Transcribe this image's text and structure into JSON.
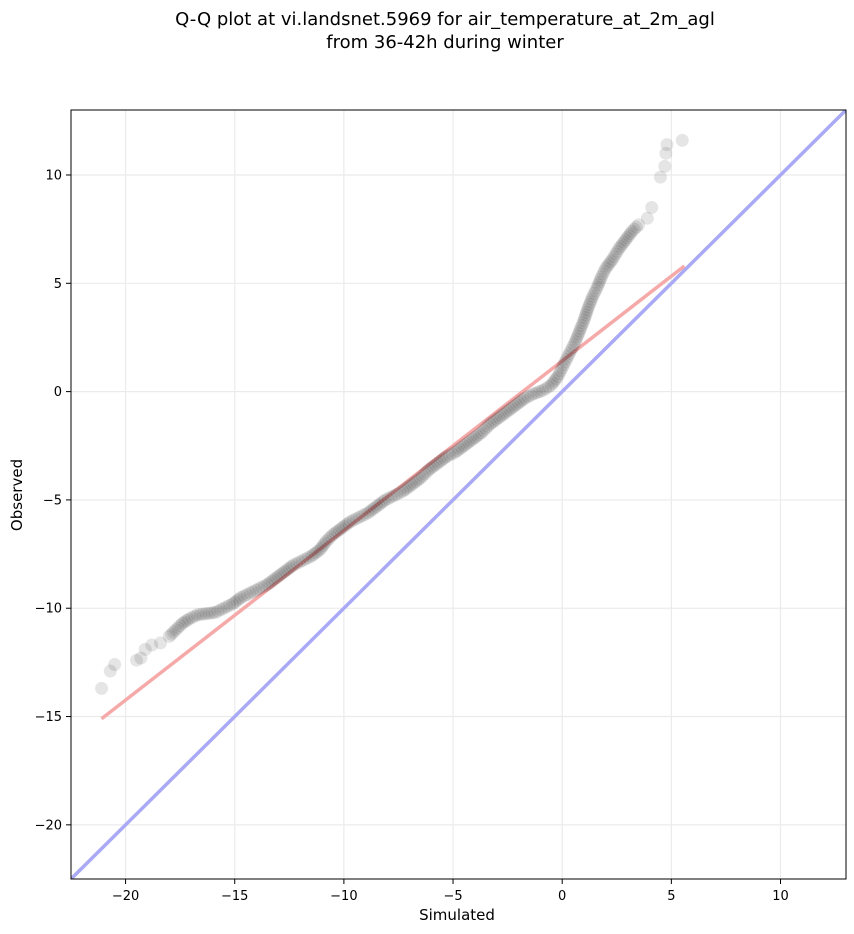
{
  "chart_data": {
    "type": "scatter",
    "title_line1": "Q-Q plot at vi.landsnet.5969 for air_temperature_at_2m_agl",
    "title_line2": "from 36-42h during winter",
    "xlabel": "Simulated",
    "ylabel": "Observed",
    "xlim": [
      -22.5,
      13.0
    ],
    "ylim": [
      -22.5,
      13.0
    ],
    "x_ticks": [
      -20,
      -15,
      -10,
      -5,
      0,
      5,
      10
    ],
    "y_ticks": [
      -20,
      -15,
      -10,
      -5,
      0,
      5,
      10
    ],
    "x_tick_labels": [
      "−20",
      "−15",
      "−10",
      "−5",
      "0",
      "5",
      "10"
    ],
    "y_tick_labels": [
      "−20",
      "−15",
      "−10",
      "−5",
      "0",
      "5",
      "10"
    ],
    "grid": true,
    "colors": {
      "points": "#000000",
      "identity_line": "#a9a9f5",
      "fit_line": "#f5a9a9",
      "grid": "#ebebeb"
    },
    "identity_line": {
      "from": [
        -22.5,
        -22.5
      ],
      "to": [
        13.0,
        13.0
      ]
    },
    "fit_line": {
      "from": [
        -21.1,
        -15.1
      ],
      "to": [
        5.6,
        5.8
      ]
    },
    "points": [
      [
        -21.1,
        -13.7
      ],
      [
        -20.7,
        -12.9
      ],
      [
        -20.5,
        -12.6
      ],
      [
        -19.5,
        -12.4
      ],
      [
        -19.3,
        -12.3
      ],
      [
        -19.1,
        -11.9
      ],
      [
        -18.8,
        -11.7
      ],
      [
        -18.4,
        -11.6
      ],
      [
        -18.0,
        -11.3
      ],
      [
        -17.7,
        -11.0
      ],
      [
        -17.4,
        -10.7
      ],
      [
        -17.1,
        -10.5
      ],
      [
        -16.7,
        -10.3
      ],
      [
        -16.3,
        -10.25
      ],
      [
        -15.9,
        -10.2
      ],
      [
        -15.5,
        -10.0
      ],
      [
        -15.1,
        -9.8
      ],
      [
        -14.7,
        -9.5
      ],
      [
        -14.3,
        -9.3
      ],
      [
        -13.9,
        -9.1
      ],
      [
        -13.5,
        -8.9
      ],
      [
        -13.1,
        -8.6
      ],
      [
        -12.7,
        -8.3
      ],
      [
        -12.3,
        -8.0
      ],
      [
        -11.9,
        -7.8
      ],
      [
        -11.5,
        -7.6
      ],
      [
        -11.1,
        -7.3
      ],
      [
        -10.8,
        -6.9
      ],
      [
        -10.5,
        -6.6
      ],
      [
        -10.1,
        -6.3
      ],
      [
        -9.7,
        -6.0
      ],
      [
        -9.3,
        -5.8
      ],
      [
        -8.9,
        -5.6
      ],
      [
        -8.5,
        -5.3
      ],
      [
        -8.1,
        -5.0
      ],
      [
        -7.7,
        -4.8
      ],
      [
        -7.3,
        -4.6
      ],
      [
        -6.9,
        -4.3
      ],
      [
        -6.5,
        -4.0
      ],
      [
        -6.1,
        -3.6
      ],
      [
        -5.7,
        -3.3
      ],
      [
        -5.3,
        -3.0
      ],
      [
        -4.9,
        -2.8
      ],
      [
        -4.5,
        -2.5
      ],
      [
        -4.1,
        -2.2
      ],
      [
        -3.7,
        -1.9
      ],
      [
        -3.3,
        -1.5
      ],
      [
        -2.9,
        -1.2
      ],
      [
        -2.5,
        -0.9
      ],
      [
        -2.1,
        -0.6
      ],
      [
        -1.7,
        -0.3
      ],
      [
        -1.3,
        -0.1
      ],
      [
        -0.9,
        0.05
      ],
      [
        -0.5,
        0.3
      ],
      [
        -0.2,
        0.7
      ],
      [
        0.0,
        1.1
      ],
      [
        0.2,
        1.5
      ],
      [
        0.4,
        1.9
      ],
      [
        0.6,
        2.3
      ],
      [
        0.8,
        2.8
      ],
      [
        1.0,
        3.3
      ],
      [
        1.2,
        3.9
      ],
      [
        1.4,
        4.4
      ],
      [
        1.6,
        4.8
      ],
      [
        1.8,
        5.3
      ],
      [
        2.0,
        5.7
      ],
      [
        2.3,
        6.1
      ],
      [
        2.6,
        6.6
      ],
      [
        2.9,
        7.0
      ],
      [
        3.2,
        7.4
      ],
      [
        3.5,
        7.7
      ],
      [
        3.9,
        8.0
      ],
      [
        4.1,
        8.5
      ],
      [
        4.5,
        9.9
      ],
      [
        4.7,
        10.4
      ],
      [
        4.75,
        11.0
      ],
      [
        4.8,
        11.4
      ],
      [
        5.5,
        11.6
      ]
    ]
  }
}
